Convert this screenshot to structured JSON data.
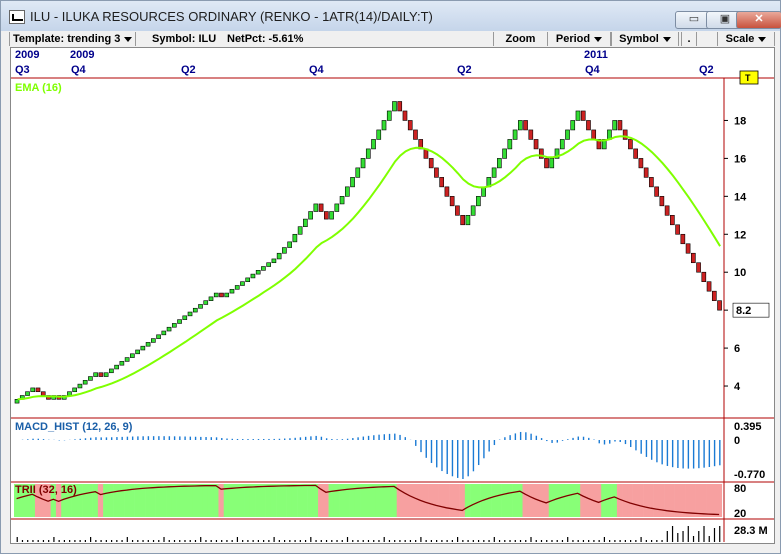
{
  "window": {
    "title": "ILU - ILUKA RESOURCES  ORDINARY (RENKO - 1ATR(14)/DAILY:T)",
    "minimize_label": "▭",
    "maximize_label": "▣",
    "close_label": "✕"
  },
  "toolbar": {
    "template_label": "Template: trending 3",
    "symbol_info": "Symbol: ILU",
    "netpct": "NetPct: -5.61%",
    "zoom_label": "Zoom",
    "period_label": "Period",
    "symbol_label": "Symbol",
    "dot_label": ".",
    "scale_label": "Scale"
  },
  "colors": {
    "up": "#33dd33",
    "down": "#cc2222",
    "ema": "#7fff00",
    "macd": "#1a7ad4",
    "panel_title": "#1a5fa8",
    "trii_line": "#800000",
    "trii_green": "#88ff77",
    "trii_red": "#f7a0a0",
    "red_border": "#b00000"
  },
  "x_axis": {
    "years": [
      {
        "label": "2009",
        "x": 4
      },
      {
        "label": "2009",
        "x": 59
      },
      {
        "label": "2011",
        "x": 573
      }
    ],
    "quarters": [
      {
        "label": "Q3",
        "x": 4
      },
      {
        "label": "Q4",
        "x": 60
      },
      {
        "label": "Q2",
        "x": 170
      },
      {
        "label": "Q4",
        "x": 298
      },
      {
        "label": "Q2",
        "x": 446
      },
      {
        "label": "Q4",
        "x": 574
      },
      {
        "label": "Q2",
        "x": 688
      }
    ]
  },
  "price_panel": {
    "label": "EMA (16)",
    "y_ticks": [
      "18",
      "16",
      "14",
      "12",
      "10",
      "8",
      "6",
      "4"
    ],
    "last_price": "8.2",
    "marker": "T"
  },
  "macd_panel": {
    "label": "MACD_HIST (12, 26, 9)",
    "y_ticks": [
      "0.395",
      "0",
      "-0.770"
    ]
  },
  "trii_panel": {
    "label": "TRII (32, 16)",
    "y_ticks": [
      "80",
      "20"
    ]
  },
  "volume_panel": {
    "label": "28.3 M"
  },
  "chart_data": {
    "type": "renko",
    "y_range": [
      3,
      19.5
    ],
    "bricks": [
      3.3,
      3.5,
      3.7,
      3.9,
      3.7,
      3.5,
      3.3,
      3.5,
      3.3,
      3.5,
      3.7,
      3.9,
      4.1,
      4.3,
      4.5,
      4.7,
      4.5,
      4.7,
      4.9,
      5.1,
      5.3,
      5.5,
      5.7,
      5.9,
      6.1,
      6.3,
      6.5,
      6.7,
      6.9,
      7.1,
      7.3,
      7.5,
      7.7,
      7.9,
      8.1,
      8.3,
      8.5,
      8.7,
      8.9,
      8.7,
      8.9,
      9.1,
      9.3,
      9.5,
      9.7,
      9.9,
      10.1,
      10.3,
      10.5,
      10.7,
      11.0,
      11.3,
      11.6,
      12.0,
      12.4,
      12.8,
      13.2,
      13.6,
      13.2,
      12.8,
      13.2,
      13.6,
      14.0,
      14.5,
      15.0,
      15.5,
      16.0,
      16.5,
      17.0,
      17.5,
      18.0,
      18.5,
      19.0,
      18.5,
      18.0,
      17.5,
      17.0,
      16.5,
      16.0,
      15.5,
      15.0,
      14.5,
      14.0,
      13.5,
      13.0,
      12.5,
      13.0,
      13.5,
      14.0,
      14.5,
      15.0,
      15.5,
      16.0,
      16.5,
      17.0,
      17.5,
      18.0,
      17.5,
      17.0,
      16.5,
      16.0,
      15.5,
      16.0,
      16.5,
      17.0,
      17.5,
      18.0,
      18.5,
      18.0,
      17.5,
      17.0,
      16.5,
      17.0,
      17.5,
      18.0,
      17.5,
      17.0,
      16.5,
      16.0,
      15.5,
      15.0,
      14.5,
      14.0,
      13.5,
      13.0,
      12.5,
      12.0,
      11.5,
      11.0,
      10.5,
      10.0,
      9.5,
      9.0,
      8.5,
      8.0
    ]
  }
}
